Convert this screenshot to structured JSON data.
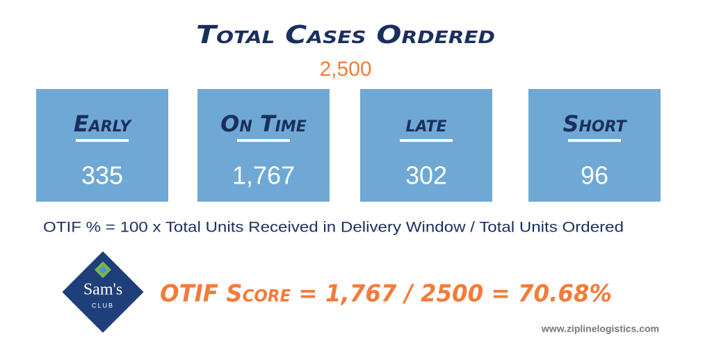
{
  "header": {
    "title": "Total Cases Ordered",
    "total": "2,500"
  },
  "boxes": [
    {
      "label": "Early",
      "value": "335"
    },
    {
      "label": "On Time",
      "value": "1,767"
    },
    {
      "label": "late",
      "value": "302"
    },
    {
      "label": "Short",
      "value": "96"
    }
  ],
  "formula": "OTIF % = 100 x Total Units Received in Delivery Window / Total Units Ordered",
  "logo": {
    "brand": "Sam's",
    "sub": "CLUB"
  },
  "score": "OTIF Score = 1,767 / 2500 = 70.68%",
  "footer": "www.ziplinelogistics.com"
}
